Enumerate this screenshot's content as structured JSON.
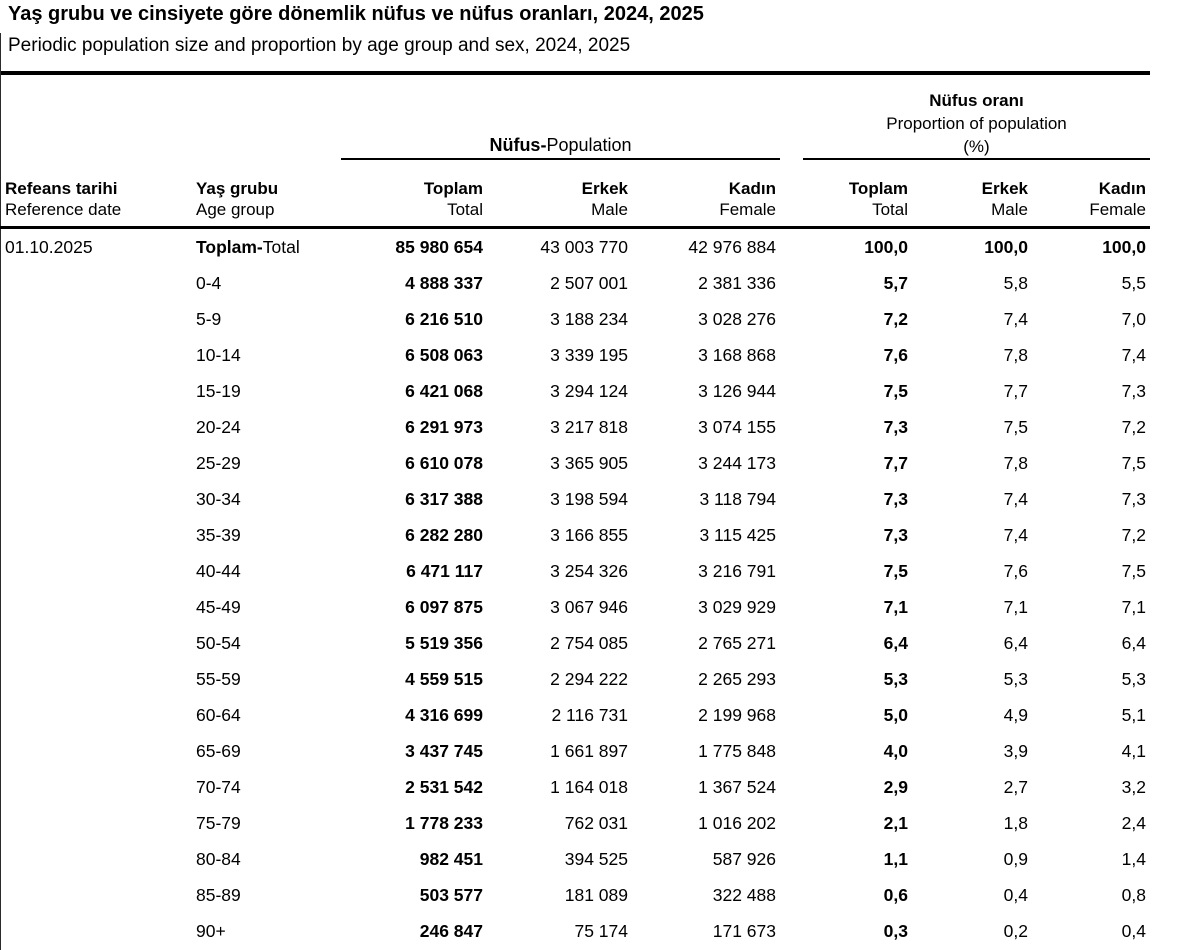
{
  "title": "Yaş grubu ve cinsiyete göre dönemlik nüfus ve nüfus oranları, 2024, 2025",
  "subtitle": "Periodic population size and proportion by age group and sex, 2024, 2025",
  "table": {
    "group_headers": {
      "population": {
        "bold": "Nüfus-",
        "rest": "Population"
      },
      "proportion": {
        "line1": "Nüfus oranı",
        "line2": "Proportion of population",
        "line3": "(%)"
      }
    },
    "columns": {
      "reference_date": {
        "primary": "Refeans tarihi",
        "secondary": "Reference date"
      },
      "age_group": {
        "primary": "Yaş grubu",
        "secondary": "Age group"
      },
      "pop_total": {
        "primary": "Toplam",
        "secondary": "Total"
      },
      "pop_male": {
        "primary": "Erkek",
        "secondary": "Male"
      },
      "pop_female": {
        "primary": "Kadın",
        "secondary": "Female"
      },
      "pct_total": {
        "primary": "Toplam",
        "secondary": "Total"
      },
      "pct_male": {
        "primary": "Erkek",
        "secondary": "Male"
      },
      "pct_female": {
        "primary": "Kadın",
        "secondary": "Female"
      }
    },
    "rows": [
      {
        "date": "01.10.2025",
        "age_bold": "Toplam-",
        "age": "Total",
        "pop_total": "85 980 654",
        "pop_male": "43 003 770",
        "pop_female": "42 976 884",
        "pct_total": "100,0",
        "pct_male": "100,0",
        "pct_female": "100,0",
        "is_total": true
      },
      {
        "date": "",
        "age_bold": "",
        "age": "0-4",
        "pop_total": "4 888 337",
        "pop_male": "2 507 001",
        "pop_female": "2 381 336",
        "pct_total": "5,7",
        "pct_male": "5,8",
        "pct_female": "5,5",
        "is_total": false
      },
      {
        "date": "",
        "age_bold": "",
        "age": "5-9",
        "pop_total": "6 216 510",
        "pop_male": "3 188 234",
        "pop_female": "3 028 276",
        "pct_total": "7,2",
        "pct_male": "7,4",
        "pct_female": "7,0",
        "is_total": false
      },
      {
        "date": "",
        "age_bold": "",
        "age": "10-14",
        "pop_total": "6 508 063",
        "pop_male": "3 339 195",
        "pop_female": "3 168 868",
        "pct_total": "7,6",
        "pct_male": "7,8",
        "pct_female": "7,4",
        "is_total": false
      },
      {
        "date": "",
        "age_bold": "",
        "age": "15-19",
        "pop_total": "6 421 068",
        "pop_male": "3 294 124",
        "pop_female": "3 126 944",
        "pct_total": "7,5",
        "pct_male": "7,7",
        "pct_female": "7,3",
        "is_total": false
      },
      {
        "date": "",
        "age_bold": "",
        "age": "20-24",
        "pop_total": "6 291 973",
        "pop_male": "3 217 818",
        "pop_female": "3 074 155",
        "pct_total": "7,3",
        "pct_male": "7,5",
        "pct_female": "7,2",
        "is_total": false
      },
      {
        "date": "",
        "age_bold": "",
        "age": "25-29",
        "pop_total": "6 610 078",
        "pop_male": "3 365 905",
        "pop_female": "3 244 173",
        "pct_total": "7,7",
        "pct_male": "7,8",
        "pct_female": "7,5",
        "is_total": false
      },
      {
        "date": "",
        "age_bold": "",
        "age": "30-34",
        "pop_total": "6 317 388",
        "pop_male": "3 198 594",
        "pop_female": "3 118 794",
        "pct_total": "7,3",
        "pct_male": "7,4",
        "pct_female": "7,3",
        "is_total": false
      },
      {
        "date": "",
        "age_bold": "",
        "age": "35-39",
        "pop_total": "6 282 280",
        "pop_male": "3 166 855",
        "pop_female": "3 115 425",
        "pct_total": "7,3",
        "pct_male": "7,4",
        "pct_female": "7,2",
        "is_total": false
      },
      {
        "date": "",
        "age_bold": "",
        "age": "40-44",
        "pop_total": "6 471 117",
        "pop_male": "3 254 326",
        "pop_female": "3 216 791",
        "pct_total": "7,5",
        "pct_male": "7,6",
        "pct_female": "7,5",
        "is_total": false
      },
      {
        "date": "",
        "age_bold": "",
        "age": "45-49",
        "pop_total": "6 097 875",
        "pop_male": "3 067 946",
        "pop_female": "3 029 929",
        "pct_total": "7,1",
        "pct_male": "7,1",
        "pct_female": "7,1",
        "is_total": false
      },
      {
        "date": "",
        "age_bold": "",
        "age": "50-54",
        "pop_total": "5 519 356",
        "pop_male": "2 754 085",
        "pop_female": "2 765 271",
        "pct_total": "6,4",
        "pct_male": "6,4",
        "pct_female": "6,4",
        "is_total": false
      },
      {
        "date": "",
        "age_bold": "",
        "age": "55-59",
        "pop_total": "4 559 515",
        "pop_male": "2 294 222",
        "pop_female": "2 265 293",
        "pct_total": "5,3",
        "pct_male": "5,3",
        "pct_female": "5,3",
        "is_total": false
      },
      {
        "date": "",
        "age_bold": "",
        "age": "60-64",
        "pop_total": "4 316 699",
        "pop_male": "2 116 731",
        "pop_female": "2 199 968",
        "pct_total": "5,0",
        "pct_male": "4,9",
        "pct_female": "5,1",
        "is_total": false
      },
      {
        "date": "",
        "age_bold": "",
        "age": "65-69",
        "pop_total": "3 437 745",
        "pop_male": "1 661 897",
        "pop_female": "1 775 848",
        "pct_total": "4,0",
        "pct_male": "3,9",
        "pct_female": "4,1",
        "is_total": false
      },
      {
        "date": "",
        "age_bold": "",
        "age": "70-74",
        "pop_total": "2 531 542",
        "pop_male": "1 164 018",
        "pop_female": "1 367 524",
        "pct_total": "2,9",
        "pct_male": "2,7",
        "pct_female": "3,2",
        "is_total": false
      },
      {
        "date": "",
        "age_bold": "",
        "age": "75-79",
        "pop_total": "1 778 233",
        "pop_male": "762 031",
        "pop_female": "1 016 202",
        "pct_total": "2,1",
        "pct_male": "1,8",
        "pct_female": "2,4",
        "is_total": false
      },
      {
        "date": "",
        "age_bold": "",
        "age": "80-84",
        "pop_total": "982 451",
        "pop_male": "394 525",
        "pop_female": "587 926",
        "pct_total": "1,1",
        "pct_male": "0,9",
        "pct_female": "1,4",
        "is_total": false
      },
      {
        "date": "",
        "age_bold": "",
        "age": "85-89",
        "pop_total": "503 577",
        "pop_male": "181 089",
        "pop_female": "322 488",
        "pct_total": "0,6",
        "pct_male": "0,4",
        "pct_female": "0,8",
        "is_total": false
      },
      {
        "date": "",
        "age_bold": "",
        "age": "90+",
        "pop_total": "246 847",
        "pop_male": "75 174",
        "pop_female": "171 673",
        "pct_total": "0,3",
        "pct_male": "0,2",
        "pct_female": "0,4",
        "is_total": false
      }
    ]
  },
  "chart_data": {
    "type": "table",
    "title": "Yaş grubu ve cinsiyete göre dönemlik nüfus ve nüfus oranları, 2024, 2025",
    "subtitle": "Periodic population size and proportion by age group and sex, 2024, 2025",
    "reference_date": "01.10.2025",
    "columns": [
      "Age group",
      "Population Total",
      "Population Male",
      "Population Female",
      "Proportion Total (%)",
      "Proportion Male (%)",
      "Proportion Female (%)"
    ],
    "rows": [
      [
        "Toplam-Total",
        85980654,
        43003770,
        42976884,
        100.0,
        100.0,
        100.0
      ],
      [
        "0-4",
        4888337,
        2507001,
        2381336,
        5.7,
        5.8,
        5.5
      ],
      [
        "5-9",
        6216510,
        3188234,
        3028276,
        7.2,
        7.4,
        7.0
      ],
      [
        "10-14",
        6508063,
        3339195,
        3168868,
        7.6,
        7.8,
        7.4
      ],
      [
        "15-19",
        6421068,
        3294124,
        3126944,
        7.5,
        7.7,
        7.3
      ],
      [
        "20-24",
        6291973,
        3217818,
        3074155,
        7.3,
        7.5,
        7.2
      ],
      [
        "25-29",
        6610078,
        3365905,
        3244173,
        7.7,
        7.8,
        7.5
      ],
      [
        "30-34",
        6317388,
        3198594,
        3118794,
        7.3,
        7.4,
        7.3
      ],
      [
        "35-39",
        6282280,
        3166855,
        3115425,
        7.3,
        7.4,
        7.2
      ],
      [
        "40-44",
        6471117,
        3254326,
        3216791,
        7.5,
        7.6,
        7.5
      ],
      [
        "45-49",
        6097875,
        3067946,
        3029929,
        7.1,
        7.1,
        7.1
      ],
      [
        "50-54",
        5519356,
        2754085,
        2765271,
        6.4,
        6.4,
        6.4
      ],
      [
        "55-59",
        4559515,
        2294222,
        2265293,
        5.3,
        5.3,
        5.3
      ],
      [
        "60-64",
        4316699,
        2116731,
        2199968,
        5.0,
        4.9,
        5.1
      ],
      [
        "65-69",
        3437745,
        1661897,
        1775848,
        4.0,
        3.9,
        4.1
      ],
      [
        "70-74",
        2531542,
        1164018,
        1367524,
        2.9,
        2.7,
        3.2
      ],
      [
        "75-79",
        1778233,
        762031,
        1016202,
        2.1,
        1.8,
        2.4
      ],
      [
        "80-84",
        982451,
        394525,
        587926,
        1.1,
        0.9,
        1.4
      ],
      [
        "85-89",
        503577,
        181089,
        322488,
        0.6,
        0.4,
        0.8
      ],
      [
        "90+",
        246847,
        75174,
        171673,
        0.3,
        0.2,
        0.4
      ]
    ]
  }
}
